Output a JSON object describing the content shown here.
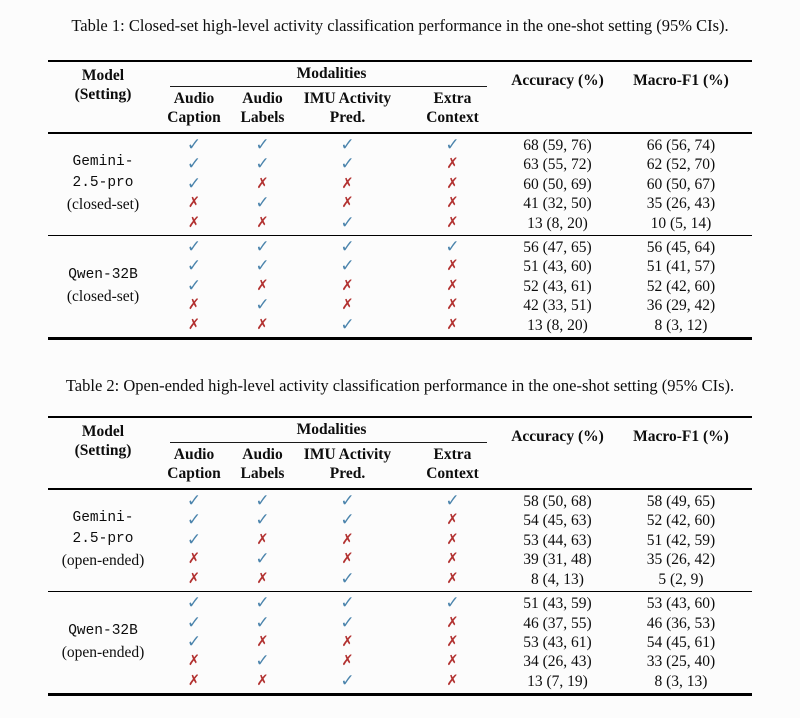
{
  "colors": {
    "check": "#4b84ac",
    "cross": "#b23130",
    "rule": "#000000",
    "text": "#0d0d0d",
    "background": "#fcfcfc"
  },
  "icons": {
    "check": "✓",
    "cross": "✗"
  },
  "tables": [
    {
      "caption": "Table 1: Closed-set high-level activity classification performance in the one-shot setting (95% CIs).",
      "header": {
        "model_line1": "Model",
        "model_line2": "(Setting)",
        "modalities_label": "Modalities",
        "modality_columns": [
          {
            "line1": "Audio",
            "line2": "Caption"
          },
          {
            "line1": "Audio",
            "line2": "Labels"
          },
          {
            "line1": "IMU Activity",
            "line2": "Pred."
          },
          {
            "line1": "Extra",
            "line2": "Context"
          }
        ],
        "accuracy_label": "Accuracy (%)",
        "macro_f1_label": "Macro-F1 (%)"
      },
      "blocks": [
        {
          "model_lines": [
            "Gemini-",
            "2.5-pro"
          ],
          "setting_line": "(closed-set)",
          "rows": [
            {
              "marks": [
                "check",
                "check",
                "check",
                "check"
              ],
              "accuracy": "68 (59, 76)",
              "macro_f1": "66 (56, 74)"
            },
            {
              "marks": [
                "check",
                "check",
                "check",
                "cross"
              ],
              "accuracy": "63 (55, 72)",
              "macro_f1": "62 (52, 70)"
            },
            {
              "marks": [
                "check",
                "cross",
                "cross",
                "cross"
              ],
              "accuracy": "60 (50, 69)",
              "macro_f1": "60 (50, 67)"
            },
            {
              "marks": [
                "cross",
                "check",
                "cross",
                "cross"
              ],
              "accuracy": "41 (32, 50)",
              "macro_f1": "35 (26, 43)"
            },
            {
              "marks": [
                "cross",
                "cross",
                "check",
                "cross"
              ],
              "accuracy": "13 (8, 20)",
              "macro_f1": "10 (5, 14)"
            }
          ]
        },
        {
          "model_lines": [
            "Qwen-32B"
          ],
          "setting_line": "(closed-set)",
          "rows": [
            {
              "marks": [
                "check",
                "check",
                "check",
                "check"
              ],
              "accuracy": "56 (47, 65)",
              "macro_f1": "56 (45, 64)"
            },
            {
              "marks": [
                "check",
                "check",
                "check",
                "cross"
              ],
              "accuracy": "51 (43, 60)",
              "macro_f1": "51 (41, 57)"
            },
            {
              "marks": [
                "check",
                "cross",
                "cross",
                "cross"
              ],
              "accuracy": "52 (43, 61)",
              "macro_f1": "52 (42, 60)"
            },
            {
              "marks": [
                "cross",
                "check",
                "cross",
                "cross"
              ],
              "accuracy": "42 (33, 51)",
              "macro_f1": "36 (29, 42)"
            },
            {
              "marks": [
                "cross",
                "cross",
                "check",
                "cross"
              ],
              "accuracy": "13 (8, 20)",
              "macro_f1": "8 (3, 12)"
            }
          ]
        }
      ]
    },
    {
      "caption": "Table 2: Open-ended high-level activity classification performance in the one-shot setting (95% CIs).",
      "header": {
        "model_line1": "Model",
        "model_line2": "(Setting)",
        "modalities_label": "Modalities",
        "modality_columns": [
          {
            "line1": "Audio",
            "line2": "Caption"
          },
          {
            "line1": "Audio",
            "line2": "Labels"
          },
          {
            "line1": "IMU Activity",
            "line2": "Pred."
          },
          {
            "line1": "Extra",
            "line2": "Context"
          }
        ],
        "accuracy_label": "Accuracy (%)",
        "macro_f1_label": "Macro-F1 (%)"
      },
      "blocks": [
        {
          "model_lines": [
            "Gemini-",
            "2.5-pro"
          ],
          "setting_line": "(open-ended)",
          "rows": [
            {
              "marks": [
                "check",
                "check",
                "check",
                "check"
              ],
              "accuracy": "58 (50, 68)",
              "macro_f1": "58 (49, 65)"
            },
            {
              "marks": [
                "check",
                "check",
                "check",
                "cross"
              ],
              "accuracy": "54 (45, 63)",
              "macro_f1": "52 (42, 60)"
            },
            {
              "marks": [
                "check",
                "cross",
                "cross",
                "cross"
              ],
              "accuracy": "53 (44, 63)",
              "macro_f1": "51 (42, 59)"
            },
            {
              "marks": [
                "cross",
                "check",
                "cross",
                "cross"
              ],
              "accuracy": "39 (31, 48)",
              "macro_f1": "35 (26, 42)"
            },
            {
              "marks": [
                "cross",
                "cross",
                "check",
                "cross"
              ],
              "accuracy": "8 (4, 13)",
              "macro_f1": "5 (2, 9)"
            }
          ]
        },
        {
          "model_lines": [
            "Qwen-32B"
          ],
          "setting_line": "(open-ended)",
          "rows": [
            {
              "marks": [
                "check",
                "check",
                "check",
                "check"
              ],
              "accuracy": "51 (43, 59)",
              "macro_f1": "53 (43, 60)"
            },
            {
              "marks": [
                "check",
                "check",
                "check",
                "cross"
              ],
              "accuracy": "46 (37, 55)",
              "macro_f1": "46 (36, 53)"
            },
            {
              "marks": [
                "check",
                "cross",
                "cross",
                "cross"
              ],
              "accuracy": "53 (43, 61)",
              "macro_f1": "54 (45, 61)"
            },
            {
              "marks": [
                "cross",
                "check",
                "cross",
                "cross"
              ],
              "accuracy": "34 (26, 43)",
              "macro_f1": "33 (25, 40)"
            },
            {
              "marks": [
                "cross",
                "cross",
                "check",
                "cross"
              ],
              "accuracy": "13 (7, 19)",
              "macro_f1": "8 (3, 13)"
            }
          ]
        }
      ]
    }
  ]
}
